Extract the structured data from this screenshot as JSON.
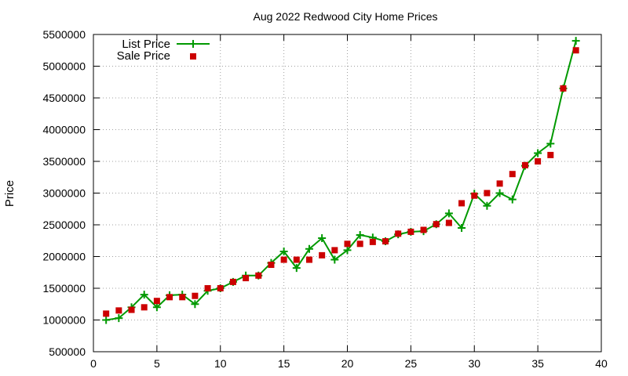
{
  "chart_data": {
    "type": "line",
    "title": "Aug 2022 Redwood City Home Prices",
    "xlabel": "",
    "ylabel": "Price",
    "xlim": [
      0,
      40
    ],
    "ylim": [
      500000,
      5500000
    ],
    "xticks": [
      0,
      5,
      10,
      15,
      20,
      25,
      30,
      35,
      40
    ],
    "yticks": [
      500000,
      1000000,
      1500000,
      2000000,
      2500000,
      3000000,
      3500000,
      4000000,
      4500000,
      5000000,
      5500000
    ],
    "grid": true,
    "legend": "top-left",
    "x": [
      1,
      2,
      3,
      4,
      5,
      6,
      7,
      8,
      9,
      10,
      11,
      12,
      13,
      14,
      15,
      16,
      17,
      18,
      19,
      20,
      21,
      22,
      23,
      24,
      25,
      26,
      27,
      28,
      29,
      30,
      31,
      32,
      33,
      34,
      35,
      36,
      37,
      38
    ],
    "series": [
      {
        "name": "List Price",
        "style": "line+cross",
        "color": "#009900",
        "values": [
          1000000,
          1030000,
          1200000,
          1400000,
          1200000,
          1390000,
          1400000,
          1250000,
          1460000,
          1500000,
          1600000,
          1700000,
          1700000,
          1900000,
          2080000,
          1820000,
          2120000,
          2290000,
          1950000,
          2100000,
          2340000,
          2300000,
          2240000,
          2350000,
          2390000,
          2400000,
          2510000,
          2680000,
          2450000,
          2990000,
          2800000,
          3000000,
          2900000,
          3430000,
          3630000,
          3780000,
          4650000,
          5400000
        ]
      },
      {
        "name": "Sale Price",
        "style": "square-markers",
        "color": "#cc0000",
        "values": [
          1100000,
          1150000,
          1160000,
          1200000,
          1300000,
          1360000,
          1360000,
          1380000,
          1500000,
          1500000,
          1600000,
          1660000,
          1700000,
          1870000,
          1950000,
          1950000,
          1950000,
          2020000,
          2100000,
          2200000,
          2200000,
          2230000,
          2240000,
          2360000,
          2390000,
          2420000,
          2510000,
          2530000,
          2840000,
          2960000,
          3000000,
          3150000,
          3300000,
          3440000,
          3500000,
          3600000,
          4650000,
          5250000
        ]
      }
    ]
  }
}
